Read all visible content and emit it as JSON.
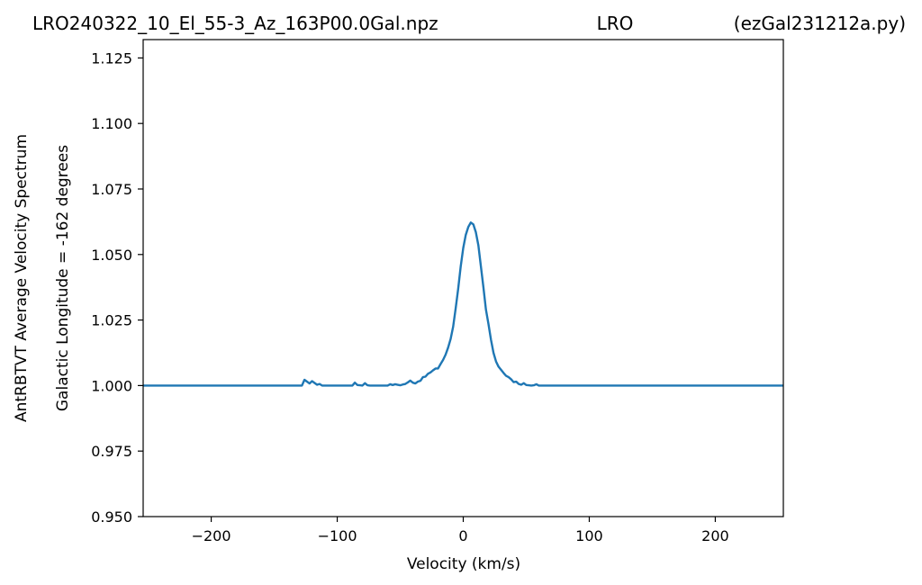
{
  "header": {
    "filename": "LRO240322_10_El_55-3_Az_163P00.0Gal.npz",
    "station": "LRO",
    "script": "(ezGal231212a.py)"
  },
  "chart_data": {
    "type": "line",
    "xlabel": "Velocity (km/s)",
    "ylabel_line1": "AntRBTVT Average Velocity Spectrum",
    "ylabel_line2": "Galactic Longitude = -162 degrees",
    "xlim": [
      -254,
      254
    ],
    "ylim": [
      0.95,
      1.132
    ],
    "xticks": [
      -200,
      -100,
      0,
      100,
      200
    ],
    "xtick_labels": [
      "−200",
      "−100",
      "0",
      "100",
      "200"
    ],
    "yticks": [
      0.95,
      0.975,
      1.0,
      1.025,
      1.05,
      1.075,
      1.1,
      1.125
    ],
    "ytick_labels": [
      "0.950",
      "0.975",
      "1.000",
      "1.025",
      "1.050",
      "1.075",
      "1.100",
      "1.125"
    ],
    "grid": false,
    "series": [
      {
        "color": "#1f77b4",
        "x": [
          -254,
          -128,
          -126,
          -124,
          -122,
          -120,
          -118,
          -116,
          -114,
          -112,
          -100,
          -88,
          -86,
          -84,
          -82,
          -80,
          -78,
          -76,
          -74,
          -72,
          -70,
          -60,
          -58,
          -56,
          -54,
          -52,
          -50,
          -48,
          -46,
          -44,
          -42,
          -40,
          -38,
          -36,
          -34,
          -32,
          -30,
          -28,
          -26,
          -24,
          -22,
          -20,
          -18,
          -16,
          -14,
          -12,
          -10,
          -8,
          -6,
          -4,
          -2,
          0,
          2,
          4,
          6,
          8,
          10,
          12,
          14,
          16,
          18,
          20,
          22,
          24,
          26,
          28,
          30,
          32,
          34,
          36,
          38,
          40,
          42,
          44,
          46,
          48,
          50,
          52,
          54,
          56,
          58,
          60,
          62,
          254
        ],
        "y": [
          1.0,
          1.0,
          1.0022,
          1.0015,
          1.0008,
          1.0017,
          1.001,
          1.0003,
          1.0006,
          1.0,
          1.0,
          1.0,
          1.0011,
          1.0002,
          1.0001,
          1.0,
          1.0009,
          1.0001,
          1.0,
          1.0,
          1.0,
          1.0,
          1.0005,
          1.0002,
          1.0005,
          1.0003,
          1.0001,
          1.0004,
          1.0006,
          1.0012,
          1.0019,
          1.0011,
          1.0008,
          1.0015,
          1.0018,
          1.0032,
          1.0034,
          1.0045,
          1.005,
          1.0058,
          1.0065,
          1.0065,
          1.0082,
          1.0098,
          1.0118,
          1.0145,
          1.0178,
          1.0225,
          1.0295,
          1.037,
          1.0455,
          1.0525,
          1.0575,
          1.0605,
          1.0622,
          1.0615,
          1.0585,
          1.0535,
          1.0455,
          1.0375,
          1.029,
          1.0235,
          1.0175,
          1.0125,
          1.0092,
          1.0072,
          1.006,
          1.0048,
          1.0037,
          1.0032,
          1.0024,
          1.0013,
          1.0015,
          1.0006,
          1.0003,
          1.0009,
          1.0002,
          1.0001,
          1.0,
          1.0001,
          1.0005,
          1.0,
          1.0,
          1.0
        ]
      }
    ]
  }
}
